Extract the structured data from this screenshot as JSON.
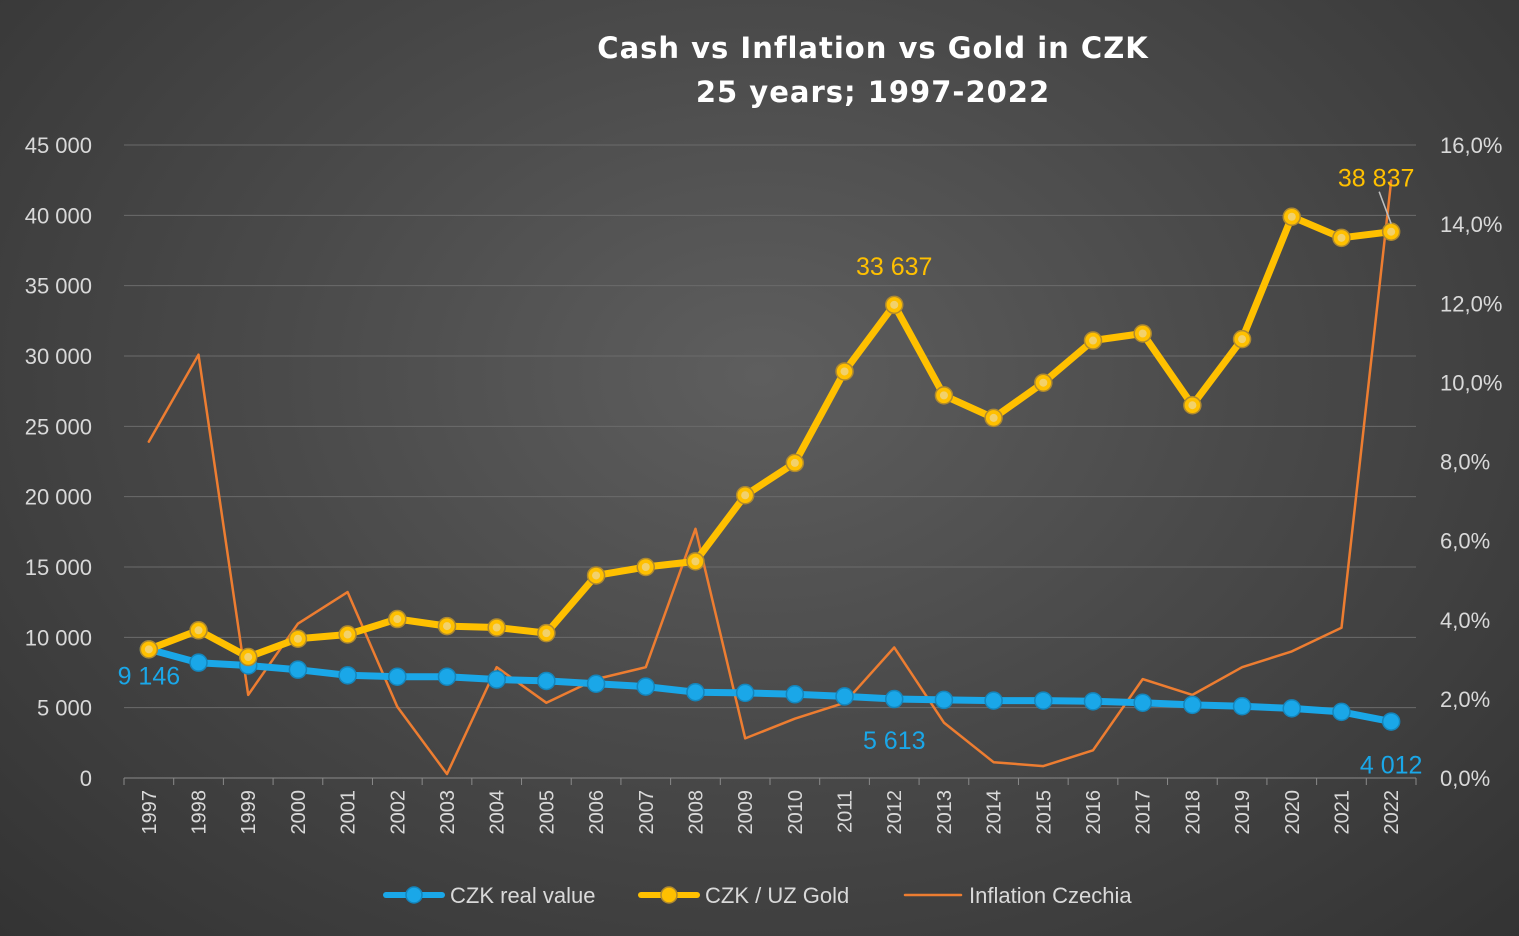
{
  "chart_data": {
    "type": "line",
    "title": "Cash vs Inflation vs Gold in CZK",
    "subtitle": "25 years; 1997-2022",
    "categories": [
      "1997",
      "1998",
      "1999",
      "2000",
      "2001",
      "2002",
      "2003",
      "2004",
      "2005",
      "2006",
      "2007",
      "2008",
      "2009",
      "2010",
      "2011",
      "2012",
      "2013",
      "2014",
      "2015",
      "2016",
      "2017",
      "2018",
      "2019",
      "2020",
      "2021",
      "2022"
    ],
    "y_left": {
      "min": 0,
      "max": 45000,
      "step": 5000,
      "tick_labels": [
        "0",
        "5 000",
        "10 000",
        "15 000",
        "20 000",
        "25 000",
        "30 000",
        "35 000",
        "40 000",
        "45 000"
      ]
    },
    "y_right": {
      "min": 0,
      "max": 16,
      "step": 2,
      "tick_labels": [
        "0,0%",
        "2,0%",
        "4,0%",
        "6,0%",
        "8,0%",
        "10,0%",
        "12,0%",
        "14,0%",
        "16,0%"
      ]
    },
    "grid": true,
    "legend_position": "bottom",
    "series": [
      {
        "name": "CZK real value",
        "axis": "left",
        "color": "#1aa7e8",
        "values": [
          9146,
          8200,
          8000,
          7700,
          7300,
          7200,
          7200,
          7000,
          6900,
          6700,
          6500,
          6100,
          6050,
          5950,
          5800,
          5613,
          5550,
          5500,
          5500,
          5450,
          5350,
          5200,
          5100,
          4950,
          4700,
          4012
        ]
      },
      {
        "name": "CZK / UZ Gold",
        "axis": "left",
        "color": "#ffc000",
        "values": [
          9146,
          10500,
          8600,
          9900,
          10200,
          11300,
          10800,
          10700,
          10300,
          14400,
          15000,
          15400,
          20100,
          22400,
          28900,
          33637,
          27200,
          25600,
          28100,
          31100,
          31600,
          26500,
          31200,
          39900,
          38400,
          38837
        ]
      },
      {
        "name": "Inflation Czechia",
        "axis": "right",
        "color": "#ed7d31",
        "values": [
          8.5,
          10.7,
          2.1,
          3.9,
          4.7,
          1.8,
          0.1,
          2.8,
          1.9,
          2.5,
          2.8,
          6.3,
          1.0,
          1.5,
          1.9,
          3.3,
          1.4,
          0.4,
          0.3,
          0.7,
          2.5,
          2.1,
          2.8,
          3.2,
          3.8,
          15.1
        ]
      }
    ],
    "annotations": [
      {
        "text": "9 146",
        "series": "CZK real value",
        "year": "1997"
      },
      {
        "text": "5 613",
        "series": "CZK real value",
        "year": "2012"
      },
      {
        "text": "4 012",
        "series": "CZK real value",
        "year": "2022"
      },
      {
        "text": "33 637",
        "series": "CZK / UZ Gold",
        "year": "2012"
      },
      {
        "text": "38 837",
        "series": "CZK / UZ Gold",
        "year": "2022"
      }
    ]
  }
}
